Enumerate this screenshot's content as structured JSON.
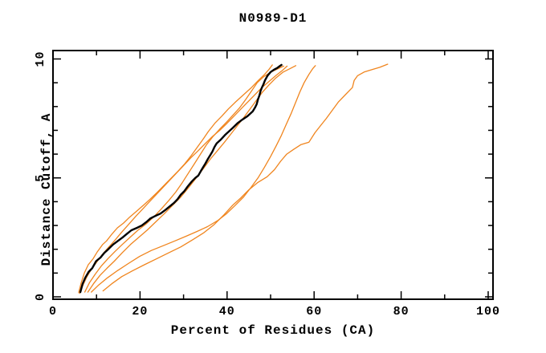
{
  "title": "N0989-D1",
  "colors": {
    "background": "#ffffff",
    "axis": "#000000",
    "orange_curve": "#f0851e",
    "black_curve": "#000000"
  },
  "chart_data": {
    "type": "line",
    "title": "N0989-D1",
    "xlabel": "Percent of Residues (CA)",
    "ylabel": "Distance Cutoff, A",
    "xlim": [
      0,
      101
    ],
    "ylim": [
      0,
      10.3
    ],
    "x_major_ticks": [
      0,
      20,
      40,
      60,
      80,
      100
    ],
    "x_minor_ticks": [
      10,
      30,
      50,
      70,
      90
    ],
    "y_major_ticks": [
      0,
      5,
      10
    ],
    "y_minor_ticks": [
      1,
      2,
      3,
      4,
      6,
      7,
      8,
      9
    ],
    "grid": false,
    "legend": false,
    "series": [
      {
        "name": "orange-curve-1",
        "color_key": "orange_curve",
        "width": 1.3,
        "points": [
          [
            5.9,
            0.18
          ],
          [
            6.5,
            0.6
          ],
          [
            7.2,
            1.0
          ],
          [
            8.1,
            1.35
          ],
          [
            9.2,
            1.6
          ],
          [
            10.2,
            1.9
          ],
          [
            11.4,
            2.2
          ],
          [
            12.3,
            2.35
          ],
          [
            13.6,
            2.65
          ],
          [
            14.8,
            2.9
          ],
          [
            16.2,
            3.1
          ],
          [
            17.6,
            3.35
          ],
          [
            19.2,
            3.6
          ],
          [
            20.8,
            3.85
          ],
          [
            22.3,
            4.1
          ],
          [
            24.0,
            4.4
          ],
          [
            25.6,
            4.7
          ],
          [
            27.2,
            5.0
          ],
          [
            28.8,
            5.3
          ],
          [
            30.3,
            5.6
          ],
          [
            31.8,
            5.95
          ],
          [
            33.2,
            6.3
          ],
          [
            34.4,
            6.6
          ],
          [
            35.7,
            6.95
          ],
          [
            37.2,
            7.3
          ],
          [
            38.8,
            7.6
          ],
          [
            40.3,
            7.9
          ],
          [
            42.0,
            8.2
          ],
          [
            43.8,
            8.5
          ],
          [
            45.6,
            8.8
          ],
          [
            47.2,
            9.1
          ],
          [
            48.6,
            9.35
          ],
          [
            49.6,
            9.55
          ],
          [
            50.4,
            9.75
          ]
        ]
      },
      {
        "name": "orange-curve-2",
        "color_key": "orange_curve",
        "width": 1.3,
        "points": [
          [
            6.1,
            0.15
          ],
          [
            6.9,
            0.5
          ],
          [
            7.8,
            0.85
          ],
          [
            8.8,
            1.15
          ],
          [
            10.0,
            1.45
          ],
          [
            11.2,
            1.75
          ],
          [
            12.6,
            2.05
          ],
          [
            14.1,
            2.35
          ],
          [
            15.7,
            2.7
          ],
          [
            17.4,
            3.05
          ],
          [
            19.1,
            3.4
          ],
          [
            20.9,
            3.75
          ],
          [
            22.7,
            4.1
          ],
          [
            24.5,
            4.45
          ],
          [
            26.3,
            4.8
          ],
          [
            28.1,
            5.15
          ],
          [
            29.9,
            5.5
          ],
          [
            31.7,
            5.85
          ],
          [
            33.4,
            6.15
          ],
          [
            35.0,
            6.45
          ],
          [
            36.7,
            6.75
          ],
          [
            38.3,
            7.0
          ],
          [
            40.0,
            7.3
          ],
          [
            41.6,
            7.6
          ],
          [
            43.2,
            7.9
          ],
          [
            44.8,
            8.2
          ],
          [
            46.4,
            8.5
          ],
          [
            48.0,
            8.8
          ],
          [
            49.6,
            9.05
          ],
          [
            51.2,
            9.3
          ],
          [
            52.6,
            9.5
          ],
          [
            53.8,
            9.7
          ]
        ]
      },
      {
        "name": "orange-curve-3",
        "color_key": "orange_curve",
        "width": 1.3,
        "points": [
          [
            7.3,
            0.2
          ],
          [
            8.4,
            0.6
          ],
          [
            9.7,
            0.95
          ],
          [
            11.1,
            1.3
          ],
          [
            12.6,
            1.6
          ],
          [
            14.2,
            1.9
          ],
          [
            15.9,
            2.2
          ],
          [
            17.7,
            2.5
          ],
          [
            19.5,
            2.8
          ],
          [
            21.3,
            3.05
          ],
          [
            23.1,
            3.35
          ],
          [
            24.9,
            3.7
          ],
          [
            26.6,
            4.05
          ],
          [
            28.2,
            4.4
          ],
          [
            29.7,
            4.8
          ],
          [
            31.1,
            5.2
          ],
          [
            32.5,
            5.6
          ],
          [
            33.9,
            6.0
          ],
          [
            35.3,
            6.4
          ],
          [
            36.8,
            6.75
          ],
          [
            38.3,
            7.05
          ],
          [
            39.9,
            7.35
          ],
          [
            41.4,
            7.65
          ],
          [
            42.9,
            7.95
          ],
          [
            44.3,
            8.3
          ],
          [
            45.6,
            8.65
          ],
          [
            46.9,
            9.0
          ],
          [
            48.4,
            9.25
          ],
          [
            50.1,
            9.45
          ],
          [
            51.8,
            9.6
          ],
          [
            53.0,
            9.7
          ]
        ]
      },
      {
        "name": "orange-curve-4",
        "color_key": "orange_curve",
        "width": 1.3,
        "points": [
          [
            8.0,
            0.2
          ],
          [
            9.3,
            0.55
          ],
          [
            10.8,
            0.9
          ],
          [
            12.4,
            1.2
          ],
          [
            14.1,
            1.5
          ],
          [
            15.9,
            1.85
          ],
          [
            17.8,
            2.2
          ],
          [
            19.7,
            2.5
          ],
          [
            21.6,
            2.8
          ],
          [
            23.6,
            3.15
          ],
          [
            25.6,
            3.5
          ],
          [
            27.5,
            3.85
          ],
          [
            29.4,
            4.2
          ],
          [
            31.2,
            4.6
          ],
          [
            32.9,
            5.0
          ],
          [
            34.6,
            5.4
          ],
          [
            36.2,
            5.8
          ],
          [
            37.8,
            6.15
          ],
          [
            39.4,
            6.5
          ],
          [
            40.9,
            6.85
          ],
          [
            42.4,
            7.2
          ],
          [
            43.9,
            7.55
          ],
          [
            45.3,
            7.9
          ],
          [
            46.7,
            8.25
          ],
          [
            48.1,
            8.6
          ],
          [
            49.6,
            8.9
          ],
          [
            51.2,
            9.2
          ],
          [
            52.9,
            9.45
          ],
          [
            54.5,
            9.6
          ],
          [
            55.8,
            9.72
          ]
        ]
      },
      {
        "name": "orange-curve-5",
        "color_key": "orange_curve",
        "width": 1.3,
        "points": [
          [
            8.8,
            0.2
          ],
          [
            10.5,
            0.5
          ],
          [
            12.5,
            0.8
          ],
          [
            14.8,
            1.1
          ],
          [
            17.3,
            1.4
          ],
          [
            19.9,
            1.7
          ],
          [
            22.6,
            1.95
          ],
          [
            25.3,
            2.15
          ],
          [
            28.0,
            2.35
          ],
          [
            30.6,
            2.55
          ],
          [
            33.1,
            2.75
          ],
          [
            35.5,
            2.95
          ],
          [
            37.8,
            3.2
          ],
          [
            39.9,
            3.5
          ],
          [
            41.9,
            3.85
          ],
          [
            43.8,
            4.2
          ],
          [
            45.5,
            4.6
          ],
          [
            47.1,
            5.0
          ],
          [
            48.6,
            5.45
          ],
          [
            50.0,
            5.9
          ],
          [
            51.3,
            6.35
          ],
          [
            52.5,
            6.8
          ],
          [
            53.6,
            7.25
          ],
          [
            54.7,
            7.7
          ],
          [
            55.7,
            8.15
          ],
          [
            56.7,
            8.6
          ],
          [
            57.7,
            9.0
          ],
          [
            58.8,
            9.35
          ],
          [
            59.7,
            9.6
          ],
          [
            60.3,
            9.72
          ]
        ]
      },
      {
        "name": "orange-curve-6",
        "color_key": "orange_curve",
        "width": 1.3,
        "points": [
          [
            11.5,
            0.25
          ],
          [
            13.5,
            0.55
          ],
          [
            15.8,
            0.85
          ],
          [
            18.3,
            1.1
          ],
          [
            21.0,
            1.35
          ],
          [
            23.8,
            1.6
          ],
          [
            26.6,
            1.85
          ],
          [
            29.4,
            2.1
          ],
          [
            32.1,
            2.4
          ],
          [
            34.7,
            2.7
          ],
          [
            37.1,
            3.05
          ],
          [
            39.3,
            3.45
          ],
          [
            41.3,
            3.85
          ],
          [
            43.1,
            4.15
          ],
          [
            45.0,
            4.5
          ],
          [
            47.0,
            4.8
          ],
          [
            49.2,
            5.05
          ],
          [
            50.9,
            5.35
          ],
          [
            52.3,
            5.7
          ],
          [
            53.7,
            6.0
          ],
          [
            55.3,
            6.2
          ],
          [
            57.0,
            6.4
          ],
          [
            58.8,
            6.5
          ],
          [
            60.2,
            6.9
          ],
          [
            61.5,
            7.2
          ],
          [
            62.8,
            7.5
          ],
          [
            64.2,
            7.85
          ],
          [
            65.6,
            8.2
          ],
          [
            67.2,
            8.5
          ],
          [
            68.8,
            8.8
          ],
          [
            69.2,
            9.1
          ],
          [
            70.0,
            9.3
          ],
          [
            71.5,
            9.45
          ],
          [
            73.3,
            9.55
          ],
          [
            75.1,
            9.65
          ],
          [
            76.9,
            9.78
          ]
        ]
      },
      {
        "name": "black-curve",
        "color_key": "black_curve",
        "width": 2.4,
        "points": [
          [
            6.3,
            0.2
          ],
          [
            6.8,
            0.55
          ],
          [
            7.4,
            0.8
          ],
          [
            8.2,
            1.05
          ],
          [
            9.0,
            1.2
          ],
          [
            9.9,
            1.5
          ],
          [
            10.9,
            1.65
          ],
          [
            11.8,
            1.85
          ],
          [
            12.7,
            2.0
          ],
          [
            13.8,
            2.2
          ],
          [
            14.9,
            2.35
          ],
          [
            16.0,
            2.5
          ],
          [
            17.0,
            2.65
          ],
          [
            18.0,
            2.8
          ],
          [
            19.3,
            2.9
          ],
          [
            20.4,
            3.0
          ],
          [
            21.5,
            3.15
          ],
          [
            22.4,
            3.3
          ],
          [
            23.5,
            3.4
          ],
          [
            24.7,
            3.5
          ],
          [
            25.8,
            3.65
          ],
          [
            26.8,
            3.8
          ],
          [
            27.8,
            3.95
          ],
          [
            28.6,
            4.1
          ],
          [
            29.4,
            4.3
          ],
          [
            30.2,
            4.45
          ],
          [
            31.0,
            4.65
          ],
          [
            31.9,
            4.85
          ],
          [
            32.7,
            5.0
          ],
          [
            33.4,
            5.1
          ],
          [
            34.0,
            5.3
          ],
          [
            34.5,
            5.45
          ],
          [
            35.0,
            5.6
          ],
          [
            35.6,
            5.8
          ],
          [
            36.1,
            5.95
          ],
          [
            36.6,
            6.1
          ],
          [
            37.1,
            6.3
          ],
          [
            37.6,
            6.45
          ],
          [
            38.5,
            6.6
          ],
          [
            39.5,
            6.8
          ],
          [
            40.4,
            6.95
          ],
          [
            41.3,
            7.1
          ],
          [
            42.4,
            7.3
          ],
          [
            43.5,
            7.45
          ],
          [
            44.7,
            7.6
          ],
          [
            45.9,
            7.8
          ],
          [
            46.4,
            7.95
          ],
          [
            46.8,
            8.1
          ],
          [
            47.1,
            8.3
          ],
          [
            47.4,
            8.45
          ],
          [
            47.7,
            8.65
          ],
          [
            48.0,
            8.8
          ],
          [
            48.4,
            8.95
          ],
          [
            48.7,
            9.1
          ],
          [
            49.3,
            9.3
          ],
          [
            50.0,
            9.45
          ],
          [
            50.8,
            9.55
          ],
          [
            51.5,
            9.62
          ],
          [
            52.1,
            9.7
          ],
          [
            52.5,
            9.75
          ]
        ]
      }
    ]
  }
}
